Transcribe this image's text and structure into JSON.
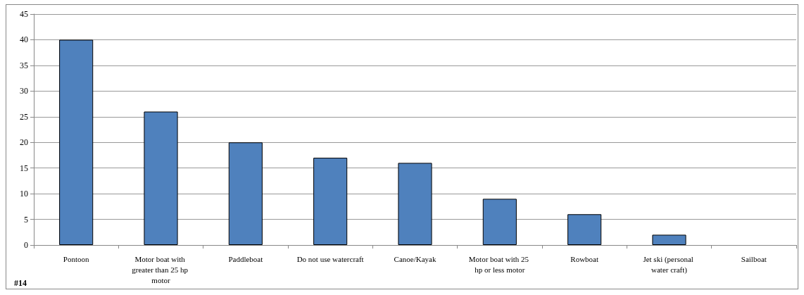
{
  "chart_data": {
    "type": "bar",
    "categories": [
      "Pontoon",
      "Motor boat with greater than 25 hp motor",
      "Paddleboat",
      "Do not use watercraft",
      "Canoe/Kayak",
      "Motor boat with 25 hp or less motor",
      "Rowboat",
      "Jet ski (personal water craft)",
      "Sailboat"
    ],
    "values": [
      40,
      26,
      20,
      17,
      16,
      9,
      6,
      2,
      0
    ],
    "color": "#4f81bd",
    "ylim": [
      0,
      45
    ],
    "yticks": [
      0,
      5,
      10,
      15,
      20,
      25,
      30,
      35,
      40,
      45
    ],
    "grid": "y",
    "annotations": [
      "#14"
    ]
  }
}
